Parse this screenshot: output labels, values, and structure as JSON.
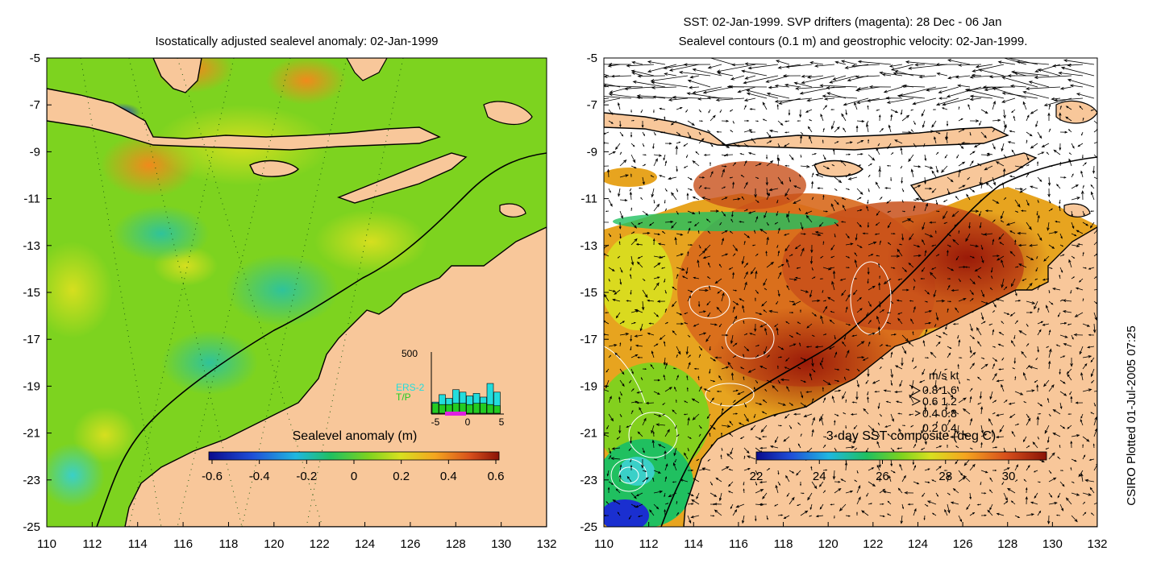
{
  "left_panel": {
    "title": "Isostatically adjusted sealevel anomaly: 02-Jan-1999",
    "colorbar": {
      "label": "Sealevel anomaly (m)",
      "ticks": [
        "-0.6",
        "-0.4",
        "-0.2",
        "0",
        "0.2",
        "0.4",
        "0.6"
      ]
    },
    "inset": {
      "ymax_label": "500",
      "x_ticks": [
        "-5",
        "0",
        "5"
      ],
      "legend": [
        {
          "name": "ERS-2",
          "color": "#22dddd"
        },
        {
          "name": "T/P",
          "color": "#22cc22"
        }
      ],
      "bars_ers2": [
        90,
        150,
        120,
        190,
        170,
        140,
        160,
        130,
        240,
        170
      ],
      "bars_tp": [
        80,
        70,
        70,
        80,
        80,
        70,
        80,
        80,
        70,
        60
      ]
    }
  },
  "right_panel": {
    "title_line1": "SST: 02-Jan-1999. SVP drifters (magenta): 28 Dec - 06 Jan",
    "title_line2": "Sealevel contours (0.1 m) and geostrophic velocity: 02-Jan-1999.",
    "colorbar": {
      "label": "3-day SST composite (deg C)",
      "ticks": [
        "22",
        "24",
        "26",
        "28",
        "30"
      ]
    },
    "velocity_legend": {
      "header": "m/s  kt",
      "rows": [
        "0.8  1.6",
        "0.6  1.2",
        "0.4  0.8",
        "0.2  0.4"
      ]
    }
  },
  "axes": {
    "y_ticks": [
      "-5",
      "-7",
      "-9",
      "-11",
      "-13",
      "-15",
      "-17",
      "-19",
      "-21",
      "-23",
      "-25"
    ],
    "x_ticks": [
      "110",
      "112",
      "114",
      "116",
      "118",
      "120",
      "122",
      "124",
      "126",
      "128",
      "130",
      "132"
    ]
  },
  "credit": "CSIRO Plotted 01-Jul-2005 07:25",
  "colors": {
    "land": "#f8c79a",
    "ocean_green": "#7dd31f",
    "sst_orange": "#d8691c",
    "sst_red": "#a01e0a",
    "contour": "#000000"
  }
}
